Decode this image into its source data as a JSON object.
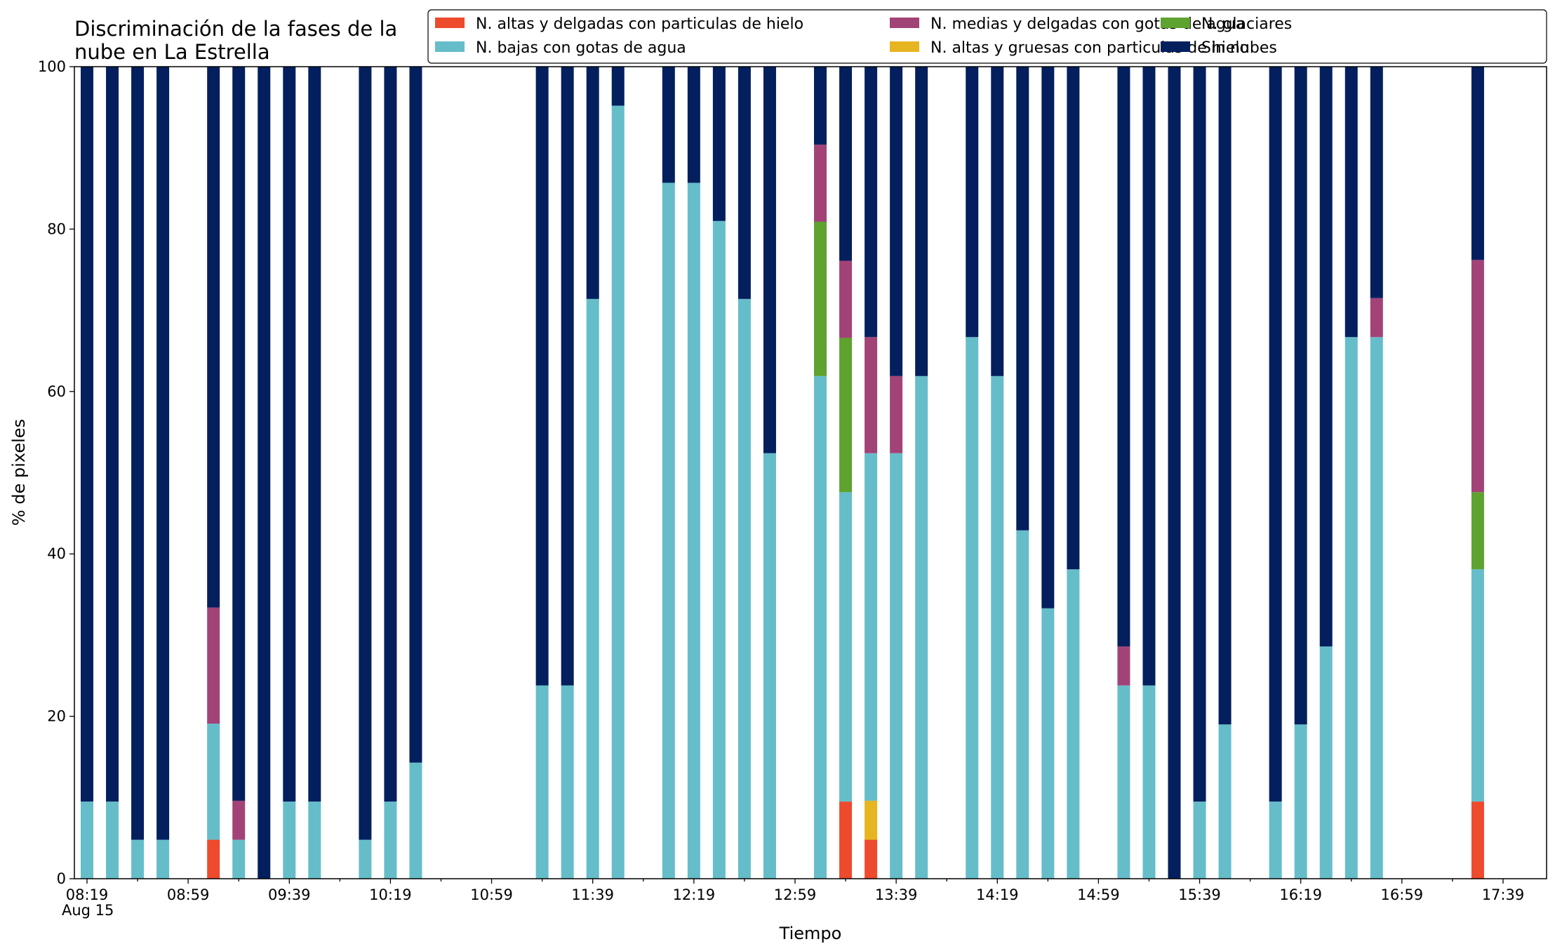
{
  "chart_data": {
    "type": "bar",
    "stacked": true,
    "title": "Discriminación de la fases de la nube en La Estrella",
    "title_lines": [
      "Discriminación de la fases de la",
      "nube en La Estrella"
    ],
    "xlabel": "Tiempo",
    "ylabel": "% de pixeles",
    "ylim": [
      0,
      100
    ],
    "yticks": [
      0,
      20,
      40,
      60,
      80,
      100
    ],
    "x_start": "08:19",
    "x_end": "17:49",
    "xticks": [
      "08:19",
      "08:59",
      "09:39",
      "10:19",
      "10:59",
      "11:39",
      "12:19",
      "12:59",
      "13:39",
      "14:19",
      "14:59",
      "15:39",
      "16:19",
      "16:59",
      "17:39"
    ],
    "x_date_label": "Aug 15",
    "grid": false,
    "legend_position": "top-right",
    "colors": {
      "altas_delgadas": "#ee4a2d",
      "altas_gruesas": "#e6b521",
      "bajas_agua": "#66bdca",
      "glaciares": "#5ea22f",
      "medias_agua": "#a24377",
      "sin_nubes": "#031f5e"
    },
    "series": [
      {
        "key": "altas_delgadas",
        "name": "N. altas y delgadas con particulas de hielo"
      },
      {
        "key": "altas_gruesas",
        "name": "N. altas y gruesas con particulas de hielo"
      },
      {
        "key": "bajas_agua",
        "name": "N. bajas con gotas de agua"
      },
      {
        "key": "glaciares",
        "name": "N. glaciares"
      },
      {
        "key": "medias_agua",
        "name": "N. medias y delgadas con gotas de agua"
      },
      {
        "key": "sin_nubes",
        "name": "Sin nubes"
      }
    ],
    "legend_order": [
      "altas_delgadas",
      "bajas_agua",
      "medias_agua",
      "altas_gruesas",
      "glaciares",
      "sin_nubes"
    ],
    "bars": [
      {
        "time": "08:19",
        "altas_delgadas": 0,
        "altas_gruesas": 0,
        "bajas_agua": 9.5,
        "glaciares": 0,
        "medias_agua": 0,
        "sin_nubes": 90.5
      },
      {
        "time": "08:29",
        "altas_delgadas": 0,
        "altas_gruesas": 0,
        "bajas_agua": 9.5,
        "glaciares": 0,
        "medias_agua": 0,
        "sin_nubes": 90.5
      },
      {
        "time": "08:39",
        "altas_delgadas": 0,
        "altas_gruesas": 0,
        "bajas_agua": 4.8,
        "glaciares": 0,
        "medias_agua": 0,
        "sin_nubes": 95.2
      },
      {
        "time": "08:49",
        "altas_delgadas": 0,
        "altas_gruesas": 0,
        "bajas_agua": 4.8,
        "glaciares": 0,
        "medias_agua": 0,
        "sin_nubes": 95.2
      },
      {
        "time": "09:09",
        "altas_delgadas": 4.8,
        "altas_gruesas": 0,
        "bajas_agua": 14.3,
        "glaciares": 0,
        "medias_agua": 14.3,
        "sin_nubes": 66.6
      },
      {
        "time": "09:19",
        "altas_delgadas": 0,
        "altas_gruesas": 0,
        "bajas_agua": 4.8,
        "glaciares": 0,
        "medias_agua": 4.8,
        "sin_nubes": 90.4
      },
      {
        "time": "09:29",
        "altas_delgadas": 0,
        "altas_gruesas": 0,
        "bajas_agua": 0,
        "glaciares": 0,
        "medias_agua": 0,
        "sin_nubes": 100
      },
      {
        "time": "09:39",
        "altas_delgadas": 0,
        "altas_gruesas": 0,
        "bajas_agua": 9.5,
        "glaciares": 0,
        "medias_agua": 0,
        "sin_nubes": 90.5
      },
      {
        "time": "09:49",
        "altas_delgadas": 0,
        "altas_gruesas": 0,
        "bajas_agua": 9.5,
        "glaciares": 0,
        "medias_agua": 0,
        "sin_nubes": 90.5
      },
      {
        "time": "10:09",
        "altas_delgadas": 0,
        "altas_gruesas": 0,
        "bajas_agua": 4.8,
        "glaciares": 0,
        "medias_agua": 0,
        "sin_nubes": 95.2
      },
      {
        "time": "10:19",
        "altas_delgadas": 0,
        "altas_gruesas": 0,
        "bajas_agua": 9.5,
        "glaciares": 0,
        "medias_agua": 0,
        "sin_nubes": 90.5
      },
      {
        "time": "10:29",
        "altas_delgadas": 0,
        "altas_gruesas": 0,
        "bajas_agua": 14.3,
        "glaciares": 0,
        "medias_agua": 0,
        "sin_nubes": 85.7
      },
      {
        "time": "11:19",
        "altas_delgadas": 0,
        "altas_gruesas": 0,
        "bajas_agua": 23.8,
        "glaciares": 0,
        "medias_agua": 0,
        "sin_nubes": 76.2
      },
      {
        "time": "11:29",
        "altas_delgadas": 0,
        "altas_gruesas": 0,
        "bajas_agua": 23.8,
        "glaciares": 0,
        "medias_agua": 0,
        "sin_nubes": 76.2
      },
      {
        "time": "11:39",
        "altas_delgadas": 0,
        "altas_gruesas": 0,
        "bajas_agua": 71.4,
        "glaciares": 0,
        "medias_agua": 0,
        "sin_nubes": 28.6
      },
      {
        "time": "11:49",
        "altas_delgadas": 0,
        "altas_gruesas": 0,
        "bajas_agua": 95.2,
        "glaciares": 0,
        "medias_agua": 0,
        "sin_nubes": 4.8
      },
      {
        "time": "12:09",
        "altas_delgadas": 0,
        "altas_gruesas": 0,
        "bajas_agua": 85.7,
        "glaciares": 0,
        "medias_agua": 0,
        "sin_nubes": 14.3
      },
      {
        "time": "12:19",
        "altas_delgadas": 0,
        "altas_gruesas": 0,
        "bajas_agua": 85.7,
        "glaciares": 0,
        "medias_agua": 0,
        "sin_nubes": 14.3
      },
      {
        "time": "12:29",
        "altas_delgadas": 0,
        "altas_gruesas": 0,
        "bajas_agua": 81.0,
        "glaciares": 0,
        "medias_agua": 0,
        "sin_nubes": 19.0
      },
      {
        "time": "12:39",
        "altas_delgadas": 0,
        "altas_gruesas": 0,
        "bajas_agua": 71.4,
        "glaciares": 0,
        "medias_agua": 0,
        "sin_nubes": 28.6
      },
      {
        "time": "12:49",
        "altas_delgadas": 0,
        "altas_gruesas": 0,
        "bajas_agua": 52.4,
        "glaciares": 0,
        "medias_agua": 0,
        "sin_nubes": 47.6
      },
      {
        "time": "13:09",
        "altas_delgadas": 0,
        "altas_gruesas": 0,
        "bajas_agua": 61.9,
        "glaciares": 19.0,
        "medias_agua": 9.5,
        "sin_nubes": 9.6
      },
      {
        "time": "13:19",
        "altas_delgadas": 9.5,
        "altas_gruesas": 0,
        "bajas_agua": 38.1,
        "glaciares": 19.0,
        "medias_agua": 9.5,
        "sin_nubes": 23.9
      },
      {
        "time": "13:29",
        "altas_delgadas": 4.8,
        "altas_gruesas": 4.8,
        "bajas_agua": 42.8,
        "glaciares": 0,
        "medias_agua": 14.3,
        "sin_nubes": 33.3
      },
      {
        "time": "13:39",
        "altas_delgadas": 0,
        "altas_gruesas": 0,
        "bajas_agua": 52.4,
        "glaciares": 0,
        "medias_agua": 9.5,
        "sin_nubes": 38.1
      },
      {
        "time": "13:49",
        "altas_delgadas": 0,
        "altas_gruesas": 0,
        "bajas_agua": 61.9,
        "glaciares": 0,
        "medias_agua": 0,
        "sin_nubes": 38.1
      },
      {
        "time": "14:09",
        "altas_delgadas": 0,
        "altas_gruesas": 0,
        "bajas_agua": 66.7,
        "glaciares": 0,
        "medias_agua": 0,
        "sin_nubes": 33.3
      },
      {
        "time": "14:19",
        "altas_delgadas": 0,
        "altas_gruesas": 0,
        "bajas_agua": 61.9,
        "glaciares": 0,
        "medias_agua": 0,
        "sin_nubes": 38.1
      },
      {
        "time": "14:29",
        "altas_delgadas": 0,
        "altas_gruesas": 0,
        "bajas_agua": 42.9,
        "glaciares": 0,
        "medias_agua": 0,
        "sin_nubes": 57.1
      },
      {
        "time": "14:39",
        "altas_delgadas": 0,
        "altas_gruesas": 0,
        "bajas_agua": 33.3,
        "glaciares": 0,
        "medias_agua": 0,
        "sin_nubes": 66.7
      },
      {
        "time": "14:49",
        "altas_delgadas": 0,
        "altas_gruesas": 0,
        "bajas_agua": 38.1,
        "glaciares": 0,
        "medias_agua": 0,
        "sin_nubes": 61.9
      },
      {
        "time": "15:09",
        "altas_delgadas": 0,
        "altas_gruesas": 0,
        "bajas_agua": 23.8,
        "glaciares": 0,
        "medias_agua": 4.8,
        "sin_nubes": 71.4
      },
      {
        "time": "15:19",
        "altas_delgadas": 0,
        "altas_gruesas": 0,
        "bajas_agua": 23.8,
        "glaciares": 0,
        "medias_agua": 0,
        "sin_nubes": 76.2
      },
      {
        "time": "15:29",
        "altas_delgadas": 0,
        "altas_gruesas": 0,
        "bajas_agua": 0,
        "glaciares": 0,
        "medias_agua": 0,
        "sin_nubes": 100
      },
      {
        "time": "15:39",
        "altas_delgadas": 0,
        "altas_gruesas": 0,
        "bajas_agua": 9.5,
        "glaciares": 0,
        "medias_agua": 0,
        "sin_nubes": 90.5
      },
      {
        "time": "15:49",
        "altas_delgadas": 0,
        "altas_gruesas": 0,
        "bajas_agua": 19.0,
        "glaciares": 0,
        "medias_agua": 0,
        "sin_nubes": 81.0
      },
      {
        "time": "16:09",
        "altas_delgadas": 0,
        "altas_gruesas": 0,
        "bajas_agua": 9.5,
        "glaciares": 0,
        "medias_agua": 0,
        "sin_nubes": 90.5
      },
      {
        "time": "16:19",
        "altas_delgadas": 0,
        "altas_gruesas": 0,
        "bajas_agua": 19.0,
        "glaciares": 0,
        "medias_agua": 0,
        "sin_nubes": 81.0
      },
      {
        "time": "16:29",
        "altas_delgadas": 0,
        "altas_gruesas": 0,
        "bajas_agua": 28.6,
        "glaciares": 0,
        "medias_agua": 0,
        "sin_nubes": 71.4
      },
      {
        "time": "16:39",
        "altas_delgadas": 0,
        "altas_gruesas": 0,
        "bajas_agua": 66.7,
        "glaciares": 0,
        "medias_agua": 0,
        "sin_nubes": 33.3
      },
      {
        "time": "16:49",
        "altas_delgadas": 0,
        "altas_gruesas": 0,
        "bajas_agua": 66.7,
        "glaciares": 0,
        "medias_agua": 4.8,
        "sin_nubes": 28.5
      },
      {
        "time": "17:29",
        "altas_delgadas": 9.5,
        "altas_gruesas": 0,
        "bajas_agua": 28.6,
        "glaciares": 9.5,
        "medias_agua": 28.6,
        "sin_nubes": 23.8
      }
    ]
  }
}
